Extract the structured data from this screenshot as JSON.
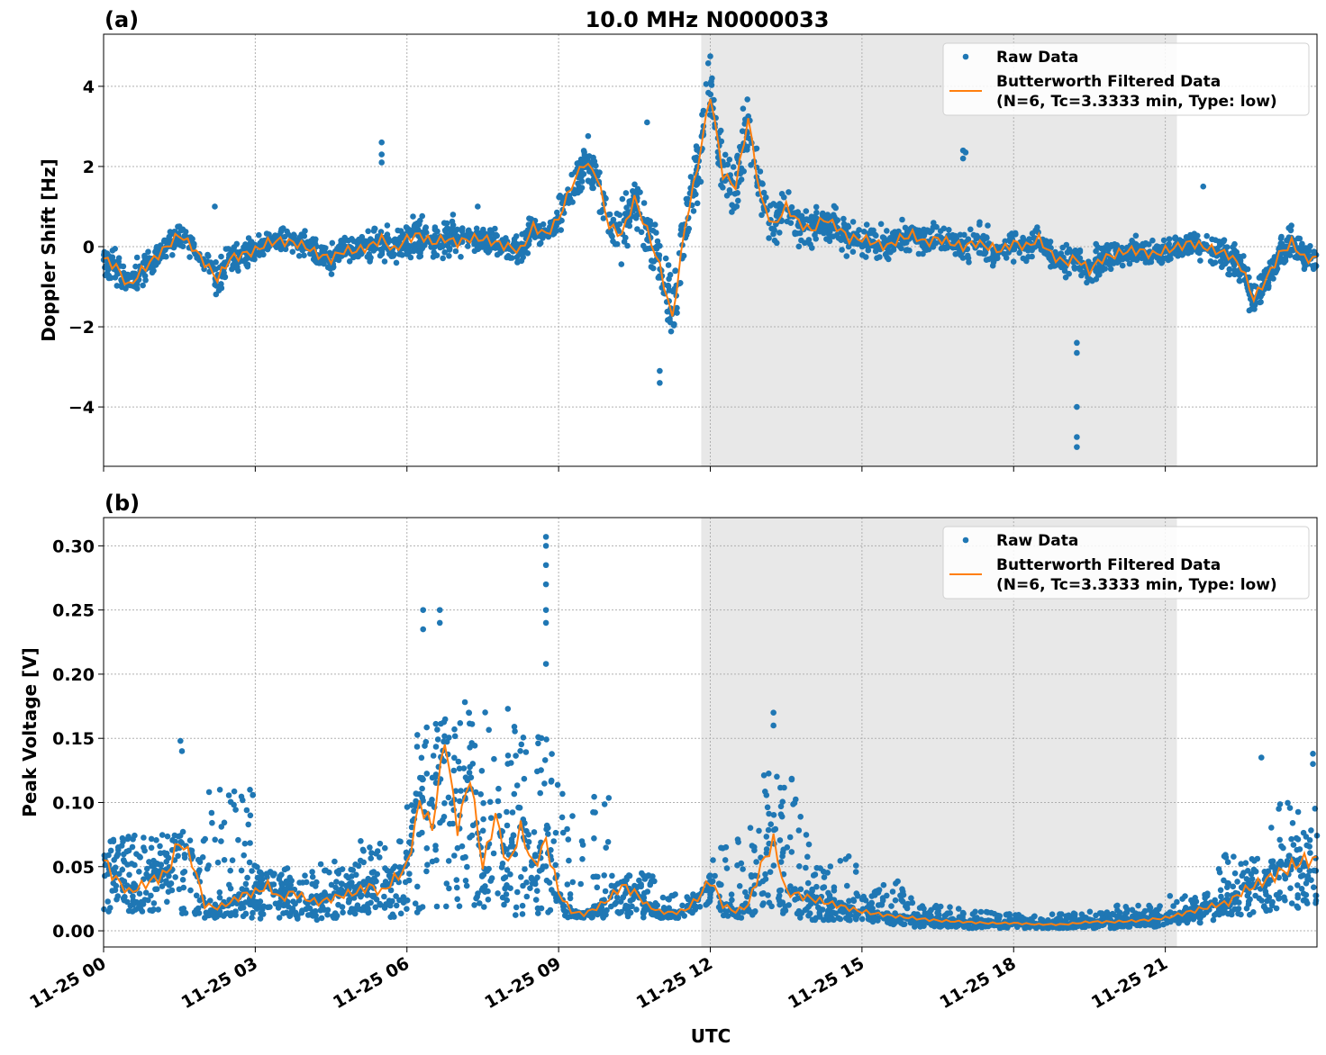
{
  "chart_data": [
    {
      "type": "scatter+line",
      "panel_label": "(a)",
      "title": "10.0 MHz N0000033",
      "xlabel": "",
      "ylabel": "Doppler Shift [Hz]",
      "xlim": [
        "11-25 00:00",
        "11-26 00:00"
      ],
      "ylim": [
        -5.48,
        5.3
      ],
      "yticks": [
        -4,
        -2,
        0,
        2,
        4
      ],
      "ytick_labels": [
        "−4",
        "−2",
        "0",
        "2",
        "4"
      ],
      "grid": true,
      "legend_position": "top-right",
      "shaded_interval_utc_hours": [
        11.82,
        21.23
      ],
      "series": [
        {
          "name": "Raw Data",
          "kind": "scatter",
          "color": "#1f77b4",
          "band_halfwidth_by_hour": [
            0.5,
            0.4,
            0.5,
            0.4,
            0.4,
            0.5,
            0.6,
            0.4,
            0.4,
            0.8,
            0.9,
            1.0,
            1.0,
            0.7,
            0.6,
            0.5,
            0.4,
            0.5,
            0.4,
            0.5,
            0.4,
            0.4,
            0.6,
            0.5
          ],
          "outliers": [
            [
              5.5,
              2.6
            ],
            [
              5.5,
              2.3
            ],
            [
              5.5,
              2.1
            ],
            [
              12.0,
              4.75
            ],
            [
              10.75,
              3.1
            ],
            [
              11.0,
              -3.4
            ],
            [
              11.0,
              -3.1
            ],
            [
              17.0,
              2.4
            ],
            [
              17.0,
              2.2
            ],
            [
              17.05,
              2.35
            ],
            [
              19.25,
              -2.4
            ],
            [
              19.25,
              -2.65
            ],
            [
              19.25,
              -4.0
            ],
            [
              19.25,
              -4.75
            ],
            [
              19.25,
              -5.0
            ],
            [
              21.75,
              1.5
            ],
            [
              7.4,
              1.0
            ],
            [
              2.2,
              1.0
            ]
          ]
        },
        {
          "name": "Butterworth Filtered Data\n(N=6, Tc=3.3333 min, Type: low)",
          "kind": "line",
          "color": "#ff7f0e",
          "x": [
            0,
            0.25,
            0.5,
            0.75,
            1,
            1.25,
            1.5,
            1.75,
            2,
            2.25,
            2.5,
            2.75,
            3,
            3.25,
            3.5,
            3.75,
            4,
            4.25,
            4.5,
            4.75,
            5,
            5.25,
            5.5,
            5.75,
            6,
            6.25,
            6.5,
            6.75,
            7,
            7.25,
            7.5,
            7.75,
            8,
            8.25,
            8.5,
            8.75,
            9,
            9.25,
            9.5,
            9.75,
            10,
            10.25,
            10.5,
            10.75,
            11,
            11.25,
            11.5,
            11.75,
            12,
            12.25,
            12.5,
            12.75,
            13,
            13.25,
            13.5,
            13.75,
            14,
            14.25,
            14.5,
            14.75,
            15,
            15.25,
            15.5,
            15.75,
            16,
            16.25,
            16.5,
            16.75,
            17,
            17.25,
            17.5,
            17.75,
            18,
            18.25,
            18.5,
            18.75,
            19,
            19.25,
            19.5,
            19.75,
            20,
            20.25,
            20.5,
            20.75,
            21,
            21.25,
            21.5,
            21.75,
            22,
            22.25,
            22.5,
            22.75,
            23,
            23.25,
            23.5,
            23.75,
            24
          ],
          "y": [
            -0.3,
            -0.5,
            -1.0,
            -0.6,
            -0.3,
            0.0,
            0.3,
            0.0,
            -0.4,
            -0.8,
            -0.3,
            -0.2,
            -0.1,
            0.1,
            0.15,
            0.1,
            0.0,
            -0.2,
            -0.3,
            -0.1,
            -0.1,
            0.0,
            0.2,
            -0.1,
            0.2,
            0.3,
            0.1,
            0.2,
            0.1,
            0.2,
            0.2,
            0.1,
            0.0,
            -0.1,
            0.5,
            0.3,
            0.7,
            1.5,
            2.1,
            1.8,
            0.5,
            0.3,
            1.2,
            0.4,
            -0.5,
            -1.8,
            0.5,
            2.0,
            3.8,
            1.8,
            1.5,
            3.2,
            1.2,
            0.5,
            1.0,
            0.6,
            0.4,
            0.7,
            0.5,
            0.2,
            0.2,
            0.1,
            0.0,
            0.2,
            0.3,
            0.1,
            0.2,
            0.1,
            0.0,
            0.1,
            0.0,
            -0.1,
            0.1,
            0.0,
            0.2,
            -0.2,
            -0.4,
            -0.3,
            -0.6,
            -0.3,
            -0.2,
            -0.1,
            -0.1,
            -0.2,
            -0.1,
            0.0,
            0.1,
            0.0,
            -0.1,
            -0.2,
            -0.5,
            -1.3,
            -0.8,
            -0.2,
            0.1,
            -0.3,
            -0.3
          ]
        }
      ]
    },
    {
      "type": "scatter+line",
      "panel_label": "(b)",
      "title": "",
      "xlabel": "UTC",
      "ylabel": "Peak Voltage [V]",
      "xlim": [
        "11-25 00:00",
        "11-26 00:00"
      ],
      "xticks": [
        "11-25 00",
        "11-25 03",
        "11-25 06",
        "11-25 09",
        "11-25 12",
        "11-25 15",
        "11-25 18",
        "11-25 21"
      ],
      "ylim": [
        -0.0126,
        0.322
      ],
      "yticks": [
        0.0,
        0.05,
        0.1,
        0.15,
        0.2,
        0.25,
        0.3
      ],
      "ytick_labels": [
        "0.00",
        "0.05",
        "0.10",
        "0.15",
        "0.20",
        "0.25",
        "0.30"
      ],
      "grid": true,
      "legend_position": "top-right",
      "shaded_interval_utc_hours": [
        11.82,
        21.23
      ],
      "series": [
        {
          "name": "Raw Data",
          "kind": "scatter",
          "color": "#1f77b4",
          "band_low_by_hour": [
            0.015,
            0.012,
            0.01,
            0.008,
            0.008,
            0.01,
            0.012,
            0.015,
            0.012,
            0.01,
            0.01,
            0.01,
            0.01,
            0.01,
            0.008,
            0.005,
            0.003,
            0.002,
            0.002,
            0.002,
            0.003,
            0.006,
            0.012,
            0.015
          ],
          "band_high_by_hour": [
            0.075,
            0.075,
            0.11,
            0.05,
            0.055,
            0.07,
            0.17,
            0.18,
            0.16,
            0.12,
            0.045,
            0.03,
            0.09,
            0.13,
            0.06,
            0.04,
            0.02,
            0.015,
            0.013,
            0.015,
            0.02,
            0.03,
            0.06,
            0.1
          ],
          "outliers": [
            [
              8.75,
              0.307
            ],
            [
              8.75,
              0.3
            ],
            [
              8.75,
              0.285
            ],
            [
              8.75,
              0.27
            ],
            [
              8.75,
              0.25
            ],
            [
              8.75,
              0.24
            ],
            [
              8.75,
              0.208
            ],
            [
              6.32,
              0.25
            ],
            [
              6.32,
              0.235
            ],
            [
              6.65,
              0.25
            ],
            [
              6.65,
              0.24
            ],
            [
              13.25,
              0.17
            ],
            [
              13.25,
              0.16
            ],
            [
              1.52,
              0.148
            ],
            [
              1.55,
              0.14
            ],
            [
              23.92,
              0.138
            ],
            [
              23.92,
              0.13
            ],
            [
              22.9,
              0.135
            ]
          ]
        },
        {
          "name": "Butterworth Filtered Data\n(N=6, Tc=3.3333 min, Type: low)",
          "kind": "line",
          "color": "#ff7f0e",
          "x": [
            0,
            0.25,
            0.5,
            0.75,
            1,
            1.25,
            1.5,
            1.75,
            2,
            2.25,
            2.5,
            2.75,
            3,
            3.25,
            3.5,
            3.75,
            4,
            4.25,
            4.5,
            4.75,
            5,
            5.25,
            5.5,
            5.75,
            6,
            6.25,
            6.5,
            6.75,
            7,
            7.25,
            7.5,
            7.75,
            8,
            8.25,
            8.5,
            8.75,
            9,
            9.25,
            9.5,
            9.75,
            10,
            10.25,
            10.5,
            10.75,
            11,
            11.25,
            11.5,
            11.75,
            12,
            12.25,
            12.5,
            12.75,
            13,
            13.25,
            13.5,
            13.75,
            14,
            14.5,
            15,
            15.5,
            16,
            16.5,
            17,
            17.5,
            18,
            18.5,
            19,
            19.5,
            20,
            20.5,
            21,
            21.5,
            22,
            22.25,
            22.5,
            22.75,
            23,
            23.25,
            23.5,
            23.75,
            24
          ],
          "y": [
            0.055,
            0.04,
            0.03,
            0.035,
            0.04,
            0.045,
            0.07,
            0.055,
            0.02,
            0.018,
            0.022,
            0.028,
            0.03,
            0.035,
            0.025,
            0.03,
            0.025,
            0.022,
            0.025,
            0.028,
            0.03,
            0.035,
            0.03,
            0.04,
            0.05,
            0.1,
            0.08,
            0.15,
            0.08,
            0.12,
            0.05,
            0.09,
            0.05,
            0.08,
            0.05,
            0.07,
            0.03,
            0.015,
            0.013,
            0.018,
            0.025,
            0.035,
            0.03,
            0.02,
            0.015,
            0.014,
            0.016,
            0.025,
            0.04,
            0.02,
            0.015,
            0.02,
            0.05,
            0.07,
            0.03,
            0.028,
            0.025,
            0.02,
            0.015,
            0.012,
            0.01,
            0.008,
            0.007,
            0.006,
            0.006,
            0.005,
            0.005,
            0.007,
            0.007,
            0.008,
            0.01,
            0.015,
            0.02,
            0.022,
            0.03,
            0.035,
            0.04,
            0.045,
            0.05,
            0.055,
            0.055
          ]
        }
      ]
    }
  ]
}
